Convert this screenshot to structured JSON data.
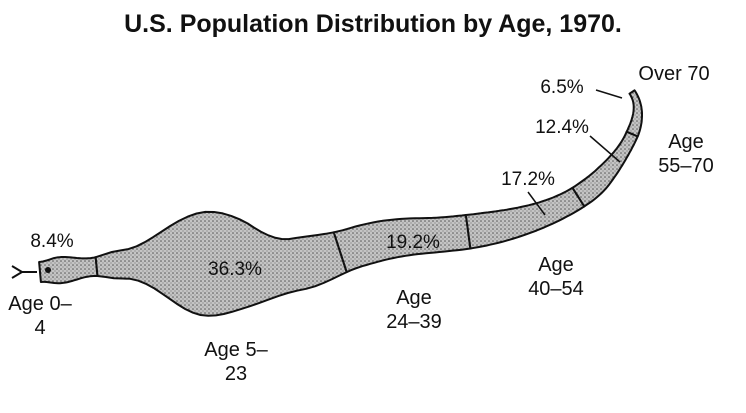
{
  "chart_data": {
    "type": "snake",
    "title": "U.S. Population Distribution by Age, 1970.",
    "categories": [
      "Age 0–4",
      "Age 5–23",
      "Age 24–39",
      "Age 40–54",
      "Age 55–70",
      "Over 70"
    ],
    "values": [
      8.4,
      36.3,
      19.2,
      17.2,
      12.4,
      6.5
    ],
    "value_labels": [
      "8.4%",
      "36.3%",
      "19.2%",
      "17.2%",
      "12.4%",
      "6.5%"
    ],
    "color": "#c4c4c4"
  }
}
